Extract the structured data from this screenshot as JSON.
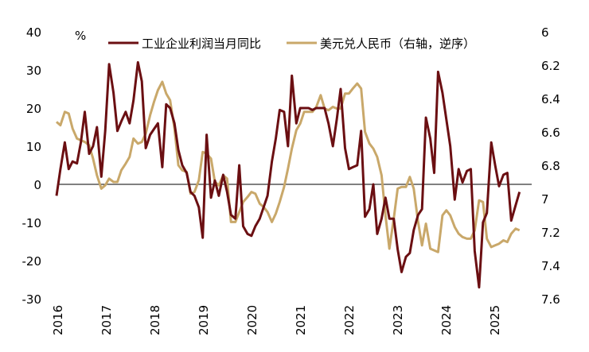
{
  "chart_data": {
    "type": "line",
    "ylabel_left": "%",
    "left_axis": {
      "min": -30,
      "max": 40,
      "ticks": [
        40,
        30,
        20,
        10,
        0,
        -10,
        -20,
        -30
      ]
    },
    "right_axis": {
      "min": 6.0,
      "max": 7.6,
      "inverted": true,
      "ticks": [
        "6",
        "6.2",
        "6.4",
        "6.6",
        "6.8",
        "7",
        "7.2",
        "7.4",
        "7.6"
      ],
      "tick_values": [
        6.0,
        6.2,
        6.4,
        6.6,
        6.8,
        7.0,
        7.2,
        7.4,
        7.6
      ]
    },
    "x_range": [
      2016.0,
      2025.75
    ],
    "x_ticks": [
      "2016",
      "2017",
      "2018",
      "2019",
      "2020",
      "2021",
      "2022",
      "2023",
      "2024",
      "2025"
    ],
    "x_tick_values": [
      2016,
      2017,
      2018,
      2019,
      2020,
      2021,
      2022,
      2023,
      2024,
      2025
    ],
    "series": [
      {
        "name": "工业企业利润当月同比",
        "color": "#6b0f12",
        "axis": "left",
        "points": [
          [
            2016.0,
            -3
          ],
          [
            2016.08,
            4
          ],
          [
            2016.17,
            11
          ],
          [
            2016.25,
            4
          ],
          [
            2016.33,
            6
          ],
          [
            2016.42,
            5.5
          ],
          [
            2016.5,
            11
          ],
          [
            2016.58,
            19
          ],
          [
            2016.67,
            8
          ],
          [
            2016.75,
            10
          ],
          [
            2016.83,
            15
          ],
          [
            2016.92,
            2
          ],
          [
            2017.0,
            14
          ],
          [
            2017.08,
            31.5
          ],
          [
            2017.17,
            24
          ],
          [
            2017.25,
            14
          ],
          [
            2017.33,
            16.5
          ],
          [
            2017.42,
            19
          ],
          [
            2017.5,
            16
          ],
          [
            2017.58,
            22
          ],
          [
            2017.67,
            32
          ],
          [
            2017.75,
            27
          ],
          [
            2017.83,
            9.5
          ],
          [
            2017.92,
            13
          ],
          [
            2018.0,
            14.5
          ],
          [
            2018.08,
            16
          ],
          [
            2018.17,
            4.5
          ],
          [
            2018.25,
            21
          ],
          [
            2018.33,
            20
          ],
          [
            2018.42,
            16
          ],
          [
            2018.5,
            9
          ],
          [
            2018.58,
            5
          ],
          [
            2018.67,
            3
          ],
          [
            2018.75,
            -2
          ],
          [
            2018.83,
            -3
          ],
          [
            2018.92,
            -6
          ],
          [
            2019.0,
            -14
          ],
          [
            2019.08,
            13
          ],
          [
            2019.17,
            -3.5
          ],
          [
            2019.25,
            1
          ],
          [
            2019.33,
            -3
          ],
          [
            2019.42,
            2.5
          ],
          [
            2019.5,
            -2
          ],
          [
            2019.58,
            -8
          ],
          [
            2019.67,
            -9
          ],
          [
            2019.75,
            5
          ],
          [
            2019.83,
            -11
          ],
          [
            2019.92,
            -13
          ],
          [
            2020.0,
            -13.5
          ],
          [
            2020.08,
            -11
          ],
          [
            2020.17,
            -9
          ],
          [
            2020.25,
            -6
          ],
          [
            2020.33,
            -3
          ],
          [
            2020.42,
            6
          ],
          [
            2020.5,
            12
          ],
          [
            2020.58,
            19.5
          ],
          [
            2020.67,
            19
          ],
          [
            2020.75,
            10
          ],
          [
            2020.83,
            28.5
          ],
          [
            2020.92,
            16
          ],
          [
            2021.0,
            20
          ],
          [
            2021.08,
            20
          ],
          [
            2021.17,
            20
          ],
          [
            2021.25,
            19.5
          ],
          [
            2021.33,
            20
          ],
          [
            2021.42,
            20
          ],
          [
            2021.5,
            20
          ],
          [
            2021.58,
            16
          ],
          [
            2021.67,
            10
          ],
          [
            2021.75,
            17
          ],
          [
            2021.83,
            25
          ],
          [
            2021.92,
            9.5
          ],
          [
            2022.0,
            4
          ],
          [
            2022.08,
            4.5
          ],
          [
            2022.17,
            5
          ],
          [
            2022.25,
            14
          ],
          [
            2022.33,
            -8.5
          ],
          [
            2022.42,
            -6.5
          ],
          [
            2022.5,
            0
          ],
          [
            2022.58,
            -13
          ],
          [
            2022.67,
            -9
          ],
          [
            2022.75,
            -3.5
          ],
          [
            2022.83,
            -9
          ],
          [
            2022.92,
            -9
          ],
          [
            2023.0,
            -17
          ],
          [
            2023.08,
            -23
          ],
          [
            2023.17,
            -19
          ],
          [
            2023.25,
            -18
          ],
          [
            2023.33,
            -12
          ],
          [
            2023.42,
            -8
          ],
          [
            2023.5,
            -6.5
          ],
          [
            2023.58,
            17.5
          ],
          [
            2023.67,
            12
          ],
          [
            2023.75,
            3
          ],
          [
            2023.83,
            29.5
          ],
          [
            2023.92,
            24
          ],
          [
            2024.0,
            17
          ],
          [
            2024.08,
            10
          ],
          [
            2024.17,
            -4
          ],
          [
            2024.25,
            4
          ],
          [
            2024.33,
            0.5
          ],
          [
            2024.42,
            3.5
          ],
          [
            2024.5,
            4
          ],
          [
            2024.58,
            -17.5
          ],
          [
            2024.67,
            -27
          ],
          [
            2024.75,
            -10
          ],
          [
            2024.83,
            -7.5
          ],
          [
            2024.92,
            11
          ],
          [
            2025.0,
            5
          ],
          [
            2025.08,
            -0.5
          ],
          [
            2025.17,
            2.5
          ],
          [
            2025.25,
            3
          ],
          [
            2025.33,
            -9.5
          ],
          [
            2025.42,
            -5.5
          ],
          [
            2025.5,
            -2
          ]
        ]
      },
      {
        "name": "美元兑人民币（右轴，逆序）",
        "color": "#c9a86a",
        "axis": "right",
        "points": [
          [
            2016.0,
            6.54
          ],
          [
            2016.08,
            6.56
          ],
          [
            2016.17,
            6.48
          ],
          [
            2016.25,
            6.49
          ],
          [
            2016.33,
            6.58
          ],
          [
            2016.42,
            6.64
          ],
          [
            2016.5,
            6.65
          ],
          [
            2016.58,
            6.66
          ],
          [
            2016.67,
            6.68
          ],
          [
            2016.75,
            6.76
          ],
          [
            2016.83,
            6.86
          ],
          [
            2016.92,
            6.94
          ],
          [
            2017.0,
            6.92
          ],
          [
            2017.08,
            6.88
          ],
          [
            2017.17,
            6.9
          ],
          [
            2017.25,
            6.9
          ],
          [
            2017.33,
            6.83
          ],
          [
            2017.42,
            6.79
          ],
          [
            2017.5,
            6.75
          ],
          [
            2017.58,
            6.64
          ],
          [
            2017.67,
            6.67
          ],
          [
            2017.75,
            6.66
          ],
          [
            2017.83,
            6.61
          ],
          [
            2017.92,
            6.5
          ],
          [
            2018.0,
            6.42
          ],
          [
            2018.08,
            6.35
          ],
          [
            2018.17,
            6.3
          ],
          [
            2018.25,
            6.37
          ],
          [
            2018.33,
            6.41
          ],
          [
            2018.42,
            6.58
          ],
          [
            2018.5,
            6.8
          ],
          [
            2018.58,
            6.83
          ],
          [
            2018.67,
            6.84
          ],
          [
            2018.75,
            6.97
          ],
          [
            2018.83,
            6.96
          ],
          [
            2018.92,
            6.89
          ],
          [
            2019.0,
            6.72
          ],
          [
            2019.08,
            6.73
          ],
          [
            2019.17,
            6.76
          ],
          [
            2019.25,
            6.9
          ],
          [
            2019.33,
            6.92
          ],
          [
            2019.42,
            6.86
          ],
          [
            2019.5,
            6.88
          ],
          [
            2019.58,
            7.14
          ],
          [
            2019.67,
            7.14
          ],
          [
            2019.75,
            7.08
          ],
          [
            2019.83,
            7.02
          ],
          [
            2019.92,
            6.99
          ],
          [
            2020.0,
            6.96
          ],
          [
            2020.08,
            6.97
          ],
          [
            2020.17,
            7.03
          ],
          [
            2020.25,
            7.05
          ],
          [
            2020.33,
            7.08
          ],
          [
            2020.42,
            7.14
          ],
          [
            2020.5,
            7.09
          ],
          [
            2020.58,
            7.02
          ],
          [
            2020.67,
            6.93
          ],
          [
            2020.75,
            6.82
          ],
          [
            2020.83,
            6.7
          ],
          [
            2020.92,
            6.59
          ],
          [
            2021.0,
            6.55
          ],
          [
            2021.08,
            6.48
          ],
          [
            2021.17,
            6.48
          ],
          [
            2021.25,
            6.48
          ],
          [
            2021.33,
            6.45
          ],
          [
            2021.42,
            6.38
          ],
          [
            2021.5,
            6.46
          ],
          [
            2021.58,
            6.47
          ],
          [
            2021.67,
            6.45
          ],
          [
            2021.75,
            6.46
          ],
          [
            2021.83,
            6.46
          ],
          [
            2021.92,
            6.37
          ],
          [
            2022.0,
            6.37
          ],
          [
            2022.08,
            6.34
          ],
          [
            2022.17,
            6.31
          ],
          [
            2022.25,
            6.34
          ],
          [
            2022.33,
            6.6
          ],
          [
            2022.42,
            6.67
          ],
          [
            2022.5,
            6.7
          ],
          [
            2022.58,
            6.75
          ],
          [
            2022.67,
            6.86
          ],
          [
            2022.75,
            7.1
          ],
          [
            2022.83,
            7.3
          ],
          [
            2022.92,
            7.12
          ],
          [
            2023.0,
            6.94
          ],
          [
            2023.08,
            6.93
          ],
          [
            2023.17,
            6.93
          ],
          [
            2023.25,
            6.87
          ],
          [
            2023.33,
            6.94
          ],
          [
            2023.42,
            7.14
          ],
          [
            2023.5,
            7.28
          ],
          [
            2023.58,
            7.15
          ],
          [
            2023.67,
            7.3
          ],
          [
            2023.75,
            7.31
          ],
          [
            2023.83,
            7.32
          ],
          [
            2023.92,
            7.1
          ],
          [
            2024.0,
            7.07
          ],
          [
            2024.08,
            7.1
          ],
          [
            2024.17,
            7.17
          ],
          [
            2024.25,
            7.21
          ],
          [
            2024.33,
            7.23
          ],
          [
            2024.42,
            7.24
          ],
          [
            2024.5,
            7.24
          ],
          [
            2024.58,
            7.19
          ],
          [
            2024.67,
            7.01
          ],
          [
            2024.75,
            7.02
          ],
          [
            2024.83,
            7.24
          ],
          [
            2024.92,
            7.29
          ],
          [
            2025.0,
            7.28
          ],
          [
            2025.08,
            7.27
          ],
          [
            2025.17,
            7.25
          ],
          [
            2025.25,
            7.26
          ],
          [
            2025.33,
            7.21
          ],
          [
            2025.42,
            7.18
          ],
          [
            2025.5,
            7.19
          ]
        ]
      }
    ]
  }
}
